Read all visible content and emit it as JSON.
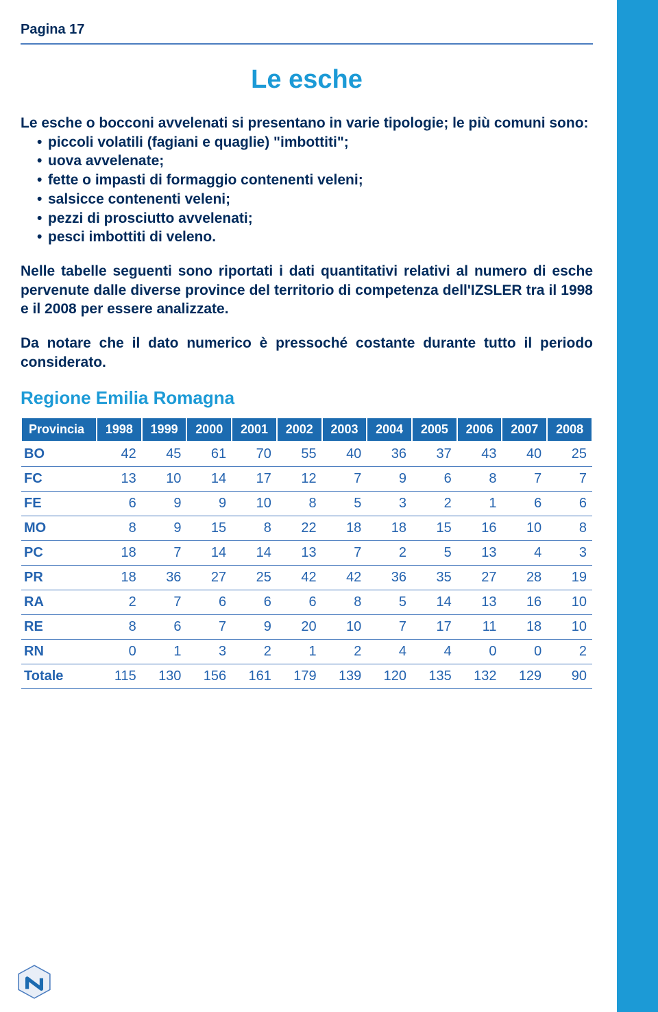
{
  "page_label": "Pagina 17",
  "title": "Le esche",
  "intro_lead": "Le esche o bocconi avvelenati si presentano in varie tipologie; le più comuni sono:",
  "bullets": [
    "piccoli volatili (fagiani e quaglie) \"imbottiti\";",
    "uova avvelenate;",
    "fette o impasti di formaggio contenenti veleni;",
    "salsicce contenenti veleni;",
    "pezzi di prosciutto avvelenati;",
    "pesci imbottiti di veleno."
  ],
  "para2": "Nelle tabelle seguenti sono riportati i dati quantitativi relativi al numero di esche pervenute dalle diverse province del territorio di competenza dell'IZSLER tra il 1998 e il 2008 per essere analizzate.",
  "para3": "Da notare che il dato numerico è pressoché costante durante tutto il periodo considerato.",
  "region_heading": "Regione Emilia Romagna",
  "table": {
    "columns": [
      "Provincia",
      "1998",
      "1999",
      "2000",
      "2001",
      "2002",
      "2003",
      "2004",
      "2005",
      "2006",
      "2007",
      "2008"
    ],
    "rows": [
      [
        "BO",
        "42",
        "45",
        "61",
        "70",
        "55",
        "40",
        "36",
        "37",
        "43",
        "40",
        "25"
      ],
      [
        "FC",
        "13",
        "10",
        "14",
        "17",
        "12",
        "7",
        "9",
        "6",
        "8",
        "7",
        "7"
      ],
      [
        "FE",
        "6",
        "9",
        "9",
        "10",
        "8",
        "5",
        "3",
        "2",
        "1",
        "6",
        "6"
      ],
      [
        "MO",
        "8",
        "9",
        "15",
        "8",
        "22",
        "18",
        "18",
        "15",
        "16",
        "10",
        "8"
      ],
      [
        "PC",
        "18",
        "7",
        "14",
        "14",
        "13",
        "7",
        "2",
        "5",
        "13",
        "4",
        "3"
      ],
      [
        "PR",
        "18",
        "36",
        "27",
        "25",
        "42",
        "42",
        "36",
        "35",
        "27",
        "28",
        "19"
      ],
      [
        "RA",
        "2",
        "7",
        "6",
        "6",
        "6",
        "8",
        "5",
        "14",
        "13",
        "16",
        "10"
      ],
      [
        "RE",
        "8",
        "6",
        "7",
        "9",
        "20",
        "10",
        "7",
        "17",
        "11",
        "18",
        "10"
      ],
      [
        "RN",
        "0",
        "1",
        "3",
        "2",
        "1",
        "2",
        "4",
        "4",
        "0",
        "0",
        "2"
      ],
      [
        "Totale",
        "115",
        "130",
        "156",
        "161",
        "179",
        "139",
        "120",
        "135",
        "132",
        "129",
        "90"
      ]
    ],
    "header_bg": "#1c6bb0",
    "header_fg": "#ffffff",
    "cell_fg": "#2463af",
    "border_color": "#4a7cbf"
  },
  "colors": {
    "accent": "#1c9ad6",
    "dark_blue": "#012a5b",
    "rule": "#4a7cbf"
  }
}
